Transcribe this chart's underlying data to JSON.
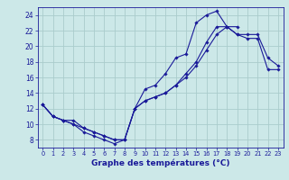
{
  "xlabel": "Graphe des températures (°C)",
  "background_color": "#cce8e8",
  "grid_color": "#aacccc",
  "line_color": "#1a1a99",
  "line1_x": [
    0,
    1,
    2,
    3,
    4,
    5,
    6,
    7,
    8,
    9,
    10,
    11,
    12,
    13,
    14,
    15,
    16,
    17,
    18,
    19,
    20,
    21
  ],
  "line1_y": [
    12.5,
    11.0,
    10.5,
    10.0,
    9.0,
    8.5,
    8.0,
    7.5,
    8.0,
    12.0,
    14.5,
    15.0,
    16.5,
    18.5,
    19.0,
    23.0,
    24.0,
    24.5,
    22.5,
    22.5,
    null,
    null
  ],
  "line2_x": [
    0,
    1,
    2,
    3,
    4,
    5,
    6,
    7,
    8,
    9,
    10,
    11,
    12,
    13,
    14,
    15,
    16,
    17,
    18,
    19,
    20,
    21,
    22,
    23
  ],
  "line2_y": [
    12.5,
    11.0,
    10.5,
    10.0,
    9.5,
    9.0,
    8.5,
    8.0,
    8.0,
    12.0,
    13.0,
    13.5,
    14.0,
    15.0,
    16.0,
    17.5,
    19.5,
    21.5,
    22.5,
    21.5,
    21.5,
    21.5,
    18.5,
    17.5
  ],
  "line3_x": [
    0,
    1,
    2,
    3,
    4,
    5,
    6,
    7,
    8,
    9,
    10,
    11,
    12,
    13,
    14,
    15,
    16,
    17,
    18,
    19,
    20,
    21,
    22,
    23
  ],
  "line3_y": [
    12.5,
    11.0,
    10.5,
    10.5,
    9.5,
    9.0,
    8.5,
    8.0,
    8.0,
    12.0,
    13.0,
    13.5,
    14.0,
    15.0,
    16.5,
    18.0,
    20.5,
    22.5,
    22.5,
    21.5,
    21.0,
    21.0,
    17.0,
    17.0
  ],
  "xlim": [
    -0.5,
    23.5
  ],
  "ylim": [
    7.0,
    25.0
  ],
  "xticks": [
    0,
    1,
    2,
    3,
    4,
    5,
    6,
    7,
    8,
    9,
    10,
    11,
    12,
    13,
    14,
    15,
    16,
    17,
    18,
    19,
    20,
    21,
    22,
    23
  ],
  "yticks": [
    8,
    10,
    12,
    14,
    16,
    18,
    20,
    22,
    24
  ],
  "xtick_fontsize": 4.8,
  "ytick_fontsize": 5.5,
  "xlabel_fontsize": 6.5,
  "linewidth": 0.8,
  "markersize": 1.8
}
